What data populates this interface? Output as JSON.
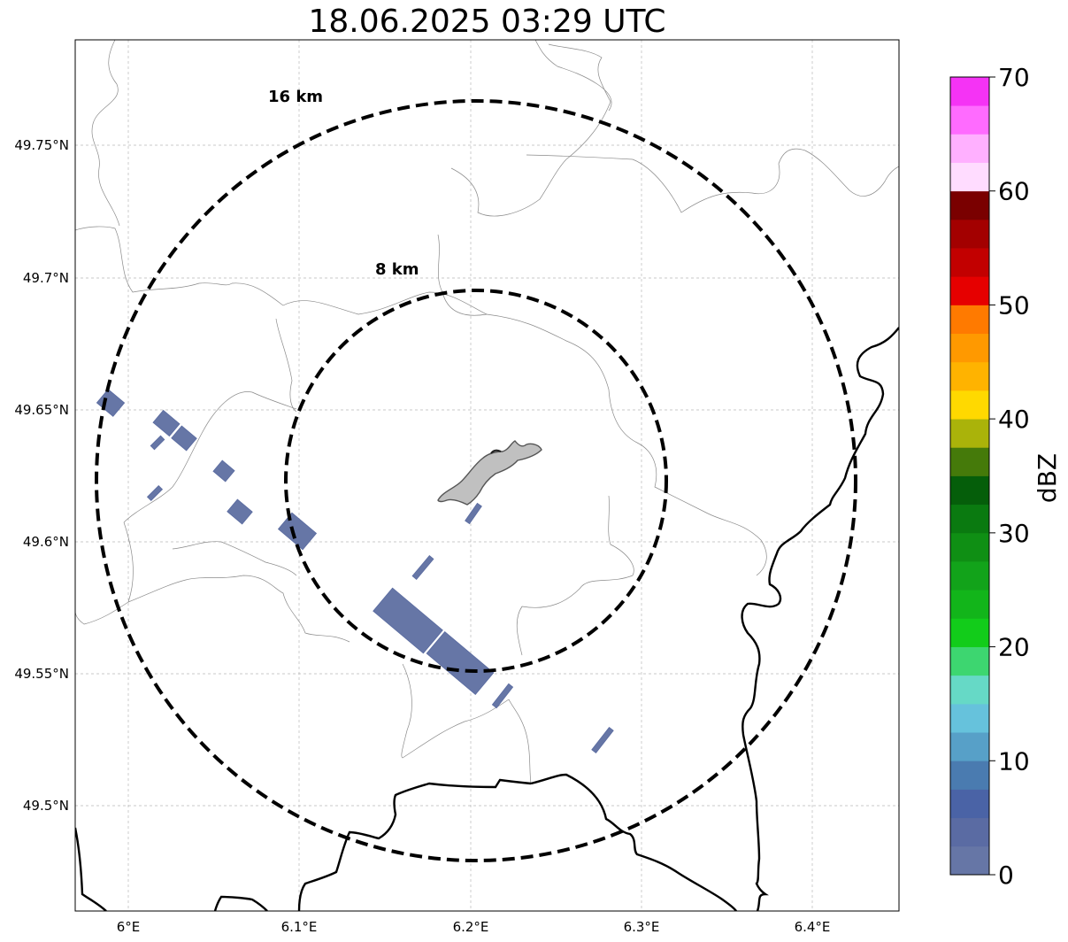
{
  "title": "18.06.2025 03:29 UTC",
  "map": {
    "lon_ticks": [
      "6°E",
      "6.1°E",
      "6.2°E",
      "6.3°E",
      "6.4°E"
    ],
    "lat_ticks": [
      "49.75°N",
      "49.7°N",
      "49.65°N",
      "49.6°N",
      "49.55°N",
      "49.5°N"
    ],
    "range_rings": [
      {
        "label": "8 km",
        "radius_km": 8
      },
      {
        "label": "16 km",
        "radius_km": 16
      }
    ],
    "radar_cells_dbz_band": "0-5"
  },
  "colorbar": {
    "label": "dBZ",
    "ticks": [
      "0",
      "10",
      "20",
      "30",
      "40",
      "50",
      "60",
      "70"
    ],
    "vmin": 0,
    "vmax": 70,
    "step": 2.5,
    "colors": [
      "#6676a6",
      "#5a6ba3",
      "#4a63a6",
      "#4a7bb0",
      "#57a0c8",
      "#66c2dc",
      "#66d9c6",
      "#3dd670",
      "#12cc1a",
      "#12b51a",
      "#12a31a",
      "#0f8f14",
      "#0a7a10",
      "#055e0a",
      "#457a0a",
      "#aab30a",
      "#ffd900",
      "#ffb300",
      "#ff9900",
      "#ff7a00",
      "#e60000",
      "#c20000",
      "#a30000",
      "#7a0000",
      "#ffdcff",
      "#ffb0ff",
      "#ff6bff",
      "#f533f5"
    ]
  }
}
